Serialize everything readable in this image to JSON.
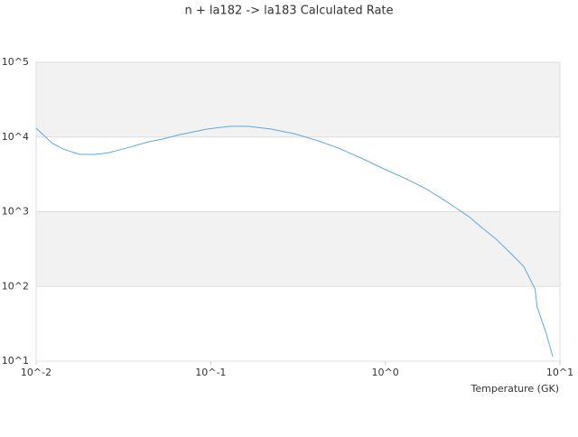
{
  "chart_data": {
    "type": "line",
    "title": "n + la182 -> la183 Calculated Rate",
    "x_label": "Temperature (GK)",
    "xscale": "log",
    "yscale": "log",
    "grid": true,
    "band_color": "#f2f2f2",
    "xlim": [
      0.01,
      10
    ],
    "ylim": [
      10,
      100000
    ],
    "xticks": [
      {
        "value": 0.01,
        "label": "10^-2"
      },
      {
        "value": 0.1,
        "label": "10^-1"
      },
      {
        "value": 1,
        "label": "10^0"
      },
      {
        "value": 10,
        "label": "10^1"
      }
    ],
    "yticks": [
      {
        "value": 10,
        "label": "10^1"
      },
      {
        "value": 100,
        "label": "10^2"
      },
      {
        "value": 1000,
        "label": "10^3"
      },
      {
        "value": 10000,
        "label": "10^4"
      },
      {
        "value": 100000,
        "label": "10^5"
      }
    ],
    "x": [
      0.01,
      0.0124,
      0.0143,
      0.0177,
      0.0217,
      0.0259,
      0.0329,
      0.0442,
      0.053,
      0.067,
      0.096,
      0.129,
      0.164,
      0.22,
      0.3,
      0.4,
      0.54,
      0.73,
      0.98,
      1.32,
      1.67,
      2.11,
      2.53,
      3.03,
      3.61,
      4.31,
      5.2,
      6.2,
      7.2,
      7.4,
      8.3,
      9.1
    ],
    "series": [
      {
        "name": "n + la182 -> la183",
        "color": "#5aa9e6",
        "values": [
          13100,
          8200,
          6900,
          5850,
          5850,
          6150,
          7100,
          8650,
          9400,
          10800,
          12800,
          13900,
          13900,
          12800,
          11100,
          9100,
          7100,
          5200,
          3750,
          2750,
          2090,
          1500,
          1130,
          850,
          600,
          430,
          280,
          185,
          93,
          53,
          24.5,
          11.5
        ]
      }
    ]
  }
}
